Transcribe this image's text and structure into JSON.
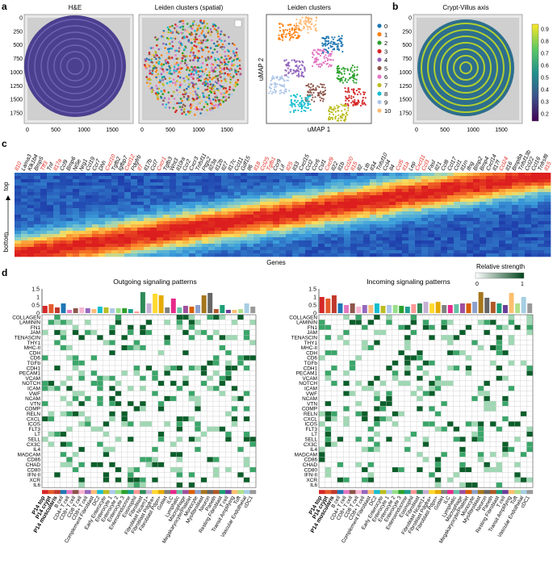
{
  "panels": {
    "a": {
      "letter": "a",
      "titles": [
        "H&E",
        "Leiden clusters (spatial)",
        "Leiden clusters"
      ],
      "y_ticks": [
        "0",
        "250",
        "500",
        "750",
        "1000",
        "1250",
        "1500",
        "1750"
      ],
      "x_ticks": [
        "0",
        "500",
        "1000",
        "1500"
      ],
      "umap_xlabel": "uMAP 1",
      "umap_ylabel": "uMAP 2",
      "legend": [
        "0",
        "1",
        "2",
        "3",
        "4",
        "5",
        "6",
        "7",
        "8",
        "9",
        "10"
      ]
    },
    "b": {
      "letter": "b",
      "title": "Crypt-Villus axis",
      "y_ticks": [
        "0",
        "250",
        "500",
        "750",
        "1000",
        "1250",
        "1500",
        "1750"
      ],
      "x_ticks": [
        "0",
        "500",
        "1000",
        "1500"
      ],
      "colorbar_ticks": [
        "0.9",
        "0.8",
        "0.7",
        "0.6",
        "0.5",
        "0.4",
        "0.3",
        "0.2"
      ]
    },
    "c": {
      "letter": "c",
      "top_label": "top",
      "bottom_label": "bottom",
      "xlabel": "Genes",
      "genes": [
        "Il10",
        "Lama3",
        "Klk1b4",
        "Bmp5",
        "Tff3",
        "Tnf",
        "Il17a",
        "Ccl9",
        "Bmp6",
        "Nt5e",
        "Nrg1",
        "Ccl19",
        "Ccr7",
        "Dhh",
        "Cxcl10",
        "Tgfb2",
        "Igfbp7",
        "Cxcl12",
        "Pdgfrb",
        "Il7",
        "Il17b",
        "Ccl7",
        "Cxcr1",
        "Tgfb3",
        "Wnt3",
        "Il10ra",
        "Ccr2",
        "Cxcr3",
        "Tnfsf11",
        "Ptgs2",
        "Il23a",
        "Il12b",
        "Il27",
        "Il17c",
        "Ccl11",
        "Gdf15",
        "Il6",
        "Il18",
        "Ccl25",
        "Tgfb1",
        "Ccr9",
        "Lif",
        "Il25",
        "Il33",
        "Cxcl15",
        "Ccl2",
        "Ccr6",
        "Csf1",
        "Cxcl9",
        "Il22",
        "Il1b",
        "Ccl20",
        "Il15",
        "Il2",
        "Ltb",
        "Il34",
        "Tnfsf10",
        "Ccl4",
        "Il4",
        "Ccl5",
        "Il1a",
        "Lep",
        "Cxcl11",
        "Ccl3",
        "Fasl",
        "Il21",
        "Ccl8",
        "Ccl17",
        "Ccl1",
        "Il1rn",
        "Ifng",
        "Bmp2",
        "Bmp4",
        "Cxcl14",
        "Il17f",
        "Ccl24",
        "Il16",
        "Bmp8a",
        "Tnfsf13b",
        "Ccl22",
        "Ccl16",
        "Tnfrsf8",
        "Il15"
      ],
      "red_genes": [
        "Il10",
        "Tff3",
        "Cxcl10",
        "Cxcl12",
        "Il7",
        "Cxcr1",
        "Il17a",
        "Il18",
        "Ccl25",
        "Tgfb1",
        "Il25",
        "Ccl20",
        "Cxcl9",
        "Cxcl11",
        "Ccl3",
        "Ccl5",
        "Il1a",
        "Ccl24",
        "Il15"
      ]
    },
    "d": {
      "letter": "d",
      "outgoing_title": "Outgoing signaling patterns",
      "incoming_title": "Incoming signaling patterns",
      "legend_title": "Relative strength",
      "legend_min": "0",
      "legend_max": "1",
      "bar_ticks": [
        "1.5",
        "1",
        "0.5",
        "0"
      ],
      "pathways": [
        "COLLAGEN",
        "LAMININ",
        "FN1",
        "JAM",
        "TENASCIN",
        "THY1",
        "MHC-II",
        "CDH",
        "CD6",
        "TGFb",
        "CDH1",
        "PECAM1",
        "VCAM",
        "NOTCH",
        "ICAM",
        "VWF",
        "NCAM",
        "VTN",
        "COMP",
        "RELN",
        "CXCL",
        "ICOS",
        "FLT3",
        "LT",
        "SELL",
        "CX3C",
        "IL4",
        "MADCAM",
        "CD86",
        "CHAD",
        "CD80",
        "IFN-II",
        "XCR",
        "IL6"
      ],
      "cell_types": [
        "P14 top",
        "P14 crypt",
        "P14 muscularis",
        "B cell",
        "CD4+ T cell",
        "CD8+ T cell",
        "CD8 T cell",
        "CD8+ T cell",
        "Complement Fibroblast",
        "DC2",
        "Early Enterocyte",
        "Enterocyte 1",
        "Enterocyte 2",
        "Enterocyte 3",
        "Enteroendocrine",
        "Eosinophil",
        "Fibroblast",
        "Fibroblast Ncam1+",
        "Fibroblast Pdgfra+",
        "Fibroblast Pdpn+",
        "Goblet",
        "ILC",
        "Lymphatic",
        "Macrophage",
        "Megakaryocyte/Platelet",
        "Monocyte",
        "Myofibroblast",
        "Neuron",
        "Paneth",
        "Resting Fibroblast",
        "T cell",
        "Transit Amplifying",
        "Tuft",
        "Vascular Endothelial",
        "cDC1"
      ],
      "bold_cells": [
        "P14 top",
        "P14 crypt",
        "P14 muscularis"
      ],
      "cell_colors": [
        "#d62728",
        "#e45a2b",
        "#c0392b",
        "#1f77b4",
        "#e377c2",
        "#8c564b",
        "#f7b6d2",
        "#9467bd",
        "#ffbb78",
        "#17becf",
        "#bcbd22",
        "#aec7e8",
        "#98df8a",
        "#2ca02c",
        "#1f9f8f",
        "#ff9896",
        "#2e8b57",
        "#c5b0d5",
        "#ffd92f",
        "#e6ab02",
        "#7f7f7f",
        "#e7298a",
        "#66c2a5",
        "#9e4f9e",
        "#d95f02",
        "#8da0cb",
        "#a6761d",
        "#666666",
        "#b15928",
        "#1b9e77",
        "#6a3d9a",
        "#fdbf6f",
        "#b2df8a",
        "#a6cee3",
        "#999999"
      ],
      "outgoing_bars": [
        0.45,
        0.55,
        0.35,
        0.6,
        0.2,
        0.3,
        0.35,
        0.3,
        0.25,
        0.4,
        0.35,
        0.3,
        0.3,
        0.3,
        0.25,
        0.1,
        1.3,
        0.6,
        1.2,
        1.1,
        0.35,
        0.9,
        0.35,
        0.45,
        0.4,
        0.5,
        1.1,
        1.25,
        0.25,
        0.5,
        0.2,
        0.2,
        0.25,
        0.6,
        0.4
      ],
      "incoming_bars": [
        1.0,
        0.9,
        1.1,
        0.6,
        0.5,
        0.6,
        0.4,
        0.5,
        0.5,
        0.6,
        0.45,
        0.5,
        0.5,
        0.45,
        0.4,
        0.55,
        0.6,
        0.7,
        0.6,
        0.7,
        0.5,
        0.5,
        0.55,
        0.6,
        0.6,
        0.7,
        1.3,
        0.95,
        0.7,
        0.6,
        0.5,
        1.25,
        0.6,
        1.0,
        0.6
      ]
    }
  }
}
